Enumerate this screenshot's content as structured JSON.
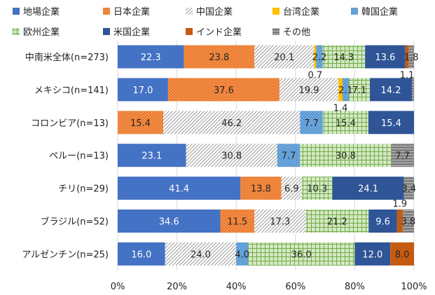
{
  "colors": {
    "local": "#4472c4",
    "japan": "#ed7d31",
    "china": "#d9d9d9",
    "taiwan": "#ffc000",
    "korea": "#5b9bd5",
    "europe": "#a9d18e",
    "usa": "#2f5597",
    "india": "#c55a11",
    "other": "#7f7f7f"
  },
  "chart_data": {
    "type": "bar",
    "orientation": "horizontal",
    "stacked": "percent",
    "title": "",
    "xlabel": "",
    "ylabel": "",
    "xlim": [
      0,
      100
    ],
    "x_ticks": [
      "0%",
      "20%",
      "40%",
      "60%",
      "80%",
      "100%"
    ],
    "legend_position": "top",
    "categories": [
      "中南米全体(n=273)",
      "メキシコ(n=141)",
      "コロンビア(n=13)",
      "ペルー(n=13)",
      "チリ(n=29)",
      "ブラジル(n=52)",
      "アルゼンチン(n=25)"
    ],
    "series": [
      {
        "name": "地場企業",
        "key": "local",
        "values": [
          22.3,
          17.0,
          0.0,
          23.1,
          41.4,
          34.6,
          16.0
        ]
      },
      {
        "name": "日本企業",
        "key": "japan",
        "values": [
          23.8,
          37.6,
          15.4,
          0.0,
          13.8,
          11.5,
          0.0
        ]
      },
      {
        "name": "中国企業",
        "key": "china",
        "values": [
          20.1,
          19.9,
          46.2,
          30.8,
          6.9,
          17.3,
          24.0
        ]
      },
      {
        "name": "台湾企業",
        "key": "taiwan",
        "values": [
          0.7,
          1.4,
          0.0,
          0.0,
          0.0,
          0.0,
          0.0
        ]
      },
      {
        "name": "韓国企業",
        "key": "korea",
        "values": [
          2.2,
          2.1,
          7.7,
          7.7,
          0.0,
          0.0,
          4.0
        ]
      },
      {
        "name": "欧州企業",
        "key": "europe",
        "values": [
          14.3,
          7.1,
          15.4,
          30.8,
          10.3,
          21.2,
          36.0
        ]
      },
      {
        "name": "米国企業",
        "key": "usa",
        "values": [
          13.6,
          14.2,
          15.4,
          0.0,
          24.1,
          9.6,
          12.0
        ]
      },
      {
        "name": "インド企業",
        "key": "india",
        "values": [
          1.1,
          0.0,
          0.0,
          0.0,
          0.0,
          1.9,
          8.0
        ]
      },
      {
        "name": "その他",
        "key": "other",
        "values": [
          1.8,
          0.7,
          0.0,
          7.7,
          3.4,
          3.8,
          0.0
        ]
      }
    ],
    "data_labels": [
      [
        {
          "series": "local",
          "text": "22.3"
        },
        {
          "series": "japan",
          "text": "23.8"
        },
        {
          "series": "china",
          "text": "20.1"
        },
        {
          "series": "taiwan",
          "text": "0.7",
          "position": "below"
        },
        {
          "series": "korea",
          "text": "2.2"
        },
        {
          "series": "europe",
          "text": "14.3"
        },
        {
          "series": "usa",
          "text": "13.6"
        },
        {
          "series": "india",
          "text": "1.1",
          "position": "below"
        },
        {
          "series": "other",
          "text": "1.8"
        }
      ],
      [
        {
          "series": "local",
          "text": "17.0"
        },
        {
          "series": "japan",
          "text": "37.6"
        },
        {
          "series": "china",
          "text": "19.9"
        },
        {
          "series": "taiwan",
          "text": "1.4",
          "position": "below"
        },
        {
          "series": "korea",
          "text": "2.1"
        },
        {
          "series": "europe",
          "text": "7.1"
        },
        {
          "series": "usa",
          "text": "14.2"
        }
      ],
      [
        {
          "series": "japan",
          "text": "15.4"
        },
        {
          "series": "china",
          "text": "46.2"
        },
        {
          "series": "korea",
          "text": "7.7"
        },
        {
          "series": "europe",
          "text": "15.4"
        },
        {
          "series": "usa",
          "text": "15.4"
        }
      ],
      [
        {
          "series": "local",
          "text": "23.1"
        },
        {
          "series": "china",
          "text": "30.8"
        },
        {
          "series": "korea",
          "text": "7.7"
        },
        {
          "series": "europe",
          "text": "30.8"
        },
        {
          "series": "other",
          "text": "7.7"
        }
      ],
      [
        {
          "series": "local",
          "text": "41.4"
        },
        {
          "series": "japan",
          "text": "13.8"
        },
        {
          "series": "china",
          "text": "6.9"
        },
        {
          "series": "europe",
          "text": "10.3"
        },
        {
          "series": "usa",
          "text": "24.1"
        },
        {
          "series": "other",
          "text": "3.4"
        }
      ],
      [
        {
          "series": "local",
          "text": "34.6"
        },
        {
          "series": "japan",
          "text": "11.5"
        },
        {
          "series": "china",
          "text": "17.3"
        },
        {
          "series": "europe",
          "text": "21.2"
        },
        {
          "series": "usa",
          "text": "9.6"
        },
        {
          "series": "india",
          "text": "1.9",
          "position": "above"
        },
        {
          "series": "other",
          "text": "3.8"
        }
      ],
      [
        {
          "series": "local",
          "text": "16.0"
        },
        {
          "series": "china",
          "text": "24.0"
        },
        {
          "series": "korea",
          "text": "4.0"
        },
        {
          "series": "europe",
          "text": "36.0"
        },
        {
          "series": "usa",
          "text": "12.0"
        },
        {
          "series": "india",
          "text": "8.0"
        }
      ]
    ]
  }
}
